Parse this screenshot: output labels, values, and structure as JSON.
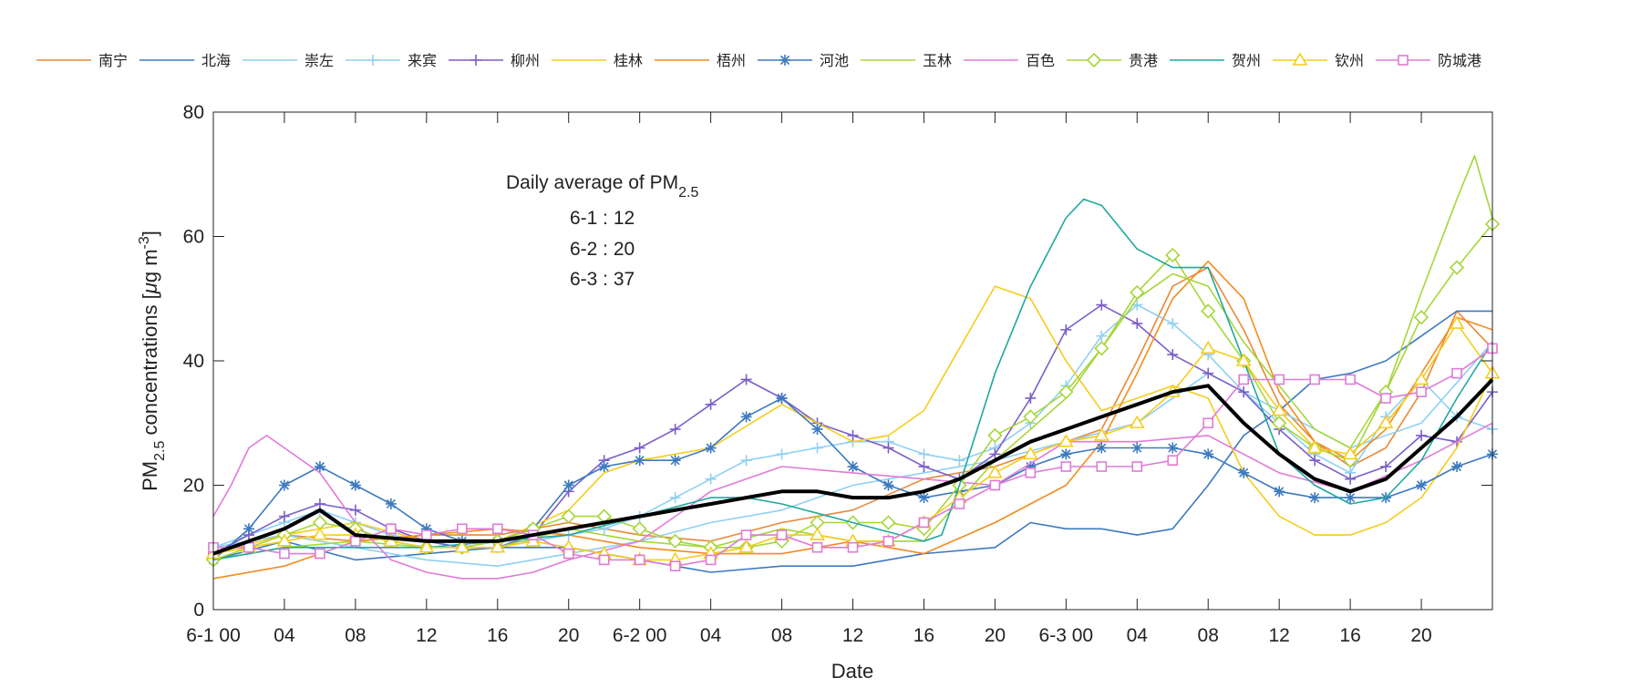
{
  "chart_data": {
    "type": "line",
    "title": "",
    "xlabel": "Date",
    "ylabel": {
      "main": "PM",
      "sub": "2.5",
      "rest": " concentrations [",
      "unit_mu": "μ",
      "unit_g": "g m",
      "unit_sup": "-3",
      "close": "]"
    },
    "ylim": [
      0,
      80
    ],
    "xlim": [
      0,
      72
    ],
    "yticks": [
      0,
      20,
      40,
      60,
      80
    ],
    "xticks": [
      {
        "at": 0,
        "label": "6-1 00"
      },
      {
        "at": 4,
        "label": "04"
      },
      {
        "at": 8,
        "label": "08"
      },
      {
        "at": 12,
        "label": "12"
      },
      {
        "at": 16,
        "label": "16"
      },
      {
        "at": 20,
        "label": "20"
      },
      {
        "at": 24,
        "label": "6-2 00"
      },
      {
        "at": 28,
        "label": "04"
      },
      {
        "at": 32,
        "label": "08"
      },
      {
        "at": 36,
        "label": "12"
      },
      {
        "at": 40,
        "label": "16"
      },
      {
        "at": 44,
        "label": "20"
      },
      {
        "at": 48,
        "label": "6-3 00"
      },
      {
        "at": 52,
        "label": "04"
      },
      {
        "at": 56,
        "label": "08"
      },
      {
        "at": 60,
        "label": "12"
      },
      {
        "at": 64,
        "label": "16"
      },
      {
        "at": 68,
        "label": "20"
      }
    ],
    "annotation": {
      "title_main": "Daily average of PM",
      "title_sub": "2.5",
      "lines": [
        "6-1 : 12",
        "6-2 : 20",
        "6-3 : 37"
      ]
    },
    "series": [
      {
        "name": "南宁",
        "color": "#e8883a",
        "marker": "none",
        "x": [
          0,
          4,
          8,
          12,
          16,
          20,
          24,
          28,
          32,
          36,
          40,
          44,
          48,
          50,
          52,
          54,
          56,
          58,
          60,
          62,
          64,
          66,
          68,
          70,
          72
        ],
        "values": [
          10,
          12,
          11,
          12,
          12,
          14,
          12,
          11,
          14,
          16,
          21,
          23,
          27,
          29,
          40,
          52,
          55,
          45,
          33,
          27,
          23,
          26,
          35,
          48,
          42
        ]
      },
      {
        "name": "北海",
        "color": "#3d7abf",
        "marker": "none",
        "x": [
          0,
          4,
          8,
          12,
          16,
          20,
          24,
          28,
          32,
          36,
          40,
          44,
          46,
          48,
          50,
          52,
          54,
          56,
          58,
          60,
          62,
          64,
          66,
          68,
          70,
          72
        ],
        "values": [
          8,
          11,
          8,
          9,
          10,
          10,
          8,
          6,
          7,
          7,
          9,
          10,
          14,
          13,
          13,
          12,
          13,
          20,
          28,
          32,
          37,
          38,
          40,
          44,
          48,
          48
        ]
      },
      {
        "name": "崇左",
        "color": "#8fd0f2",
        "marker": "none",
        "x": [
          0,
          4,
          8,
          12,
          16,
          20,
          24,
          28,
          32,
          36,
          40,
          44,
          48,
          52,
          56,
          60,
          64,
          68,
          72
        ],
        "values": [
          10,
          12,
          10,
          8,
          7,
          9,
          11,
          14,
          16,
          20,
          22,
          24,
          27,
          30,
          38,
          32,
          26,
          30,
          43
        ]
      },
      {
        "name": "来宾",
        "color": "#8fd0f2",
        "marker": "plus",
        "x": [
          0,
          2,
          4,
          6,
          8,
          10,
          12,
          14,
          16,
          18,
          20,
          22,
          24,
          26,
          28,
          30,
          32,
          34,
          36,
          38,
          40,
          42,
          44,
          46,
          48,
          50,
          52,
          54,
          56,
          58,
          60,
          62,
          64,
          66,
          68,
          70,
          72
        ],
        "values": [
          10,
          12,
          14,
          16,
          14,
          12,
          11,
          10,
          11,
          11,
          12,
          13,
          15,
          18,
          21,
          24,
          25,
          26,
          27,
          27,
          25,
          24,
          26,
          30,
          36,
          44,
          49,
          46,
          41,
          35,
          30,
          25,
          22,
          31,
          37,
          31,
          29
        ]
      },
      {
        "name": "柳州",
        "color": "#7b5ec9",
        "marker": "plus",
        "x": [
          0,
          2,
          4,
          6,
          8,
          10,
          12,
          14,
          16,
          18,
          20,
          22,
          24,
          26,
          28,
          30,
          32,
          34,
          36,
          38,
          40,
          42,
          44,
          46,
          48,
          50,
          52,
          54,
          56,
          58,
          60,
          62,
          64,
          66,
          68,
          70,
          72
        ],
        "values": [
          9,
          12,
          15,
          17,
          16,
          13,
          11,
          10,
          10,
          12,
          19,
          24,
          26,
          29,
          33,
          37,
          34,
          30,
          28,
          26,
          23,
          21,
          25,
          34,
          45,
          49,
          46,
          41,
          38,
          35,
          29,
          24,
          21,
          23,
          28,
          27,
          35
        ]
      },
      {
        "name": "桂林",
        "color": "#f5cc1e",
        "marker": "none",
        "x": [
          0,
          4,
          8,
          12,
          16,
          20,
          22,
          24,
          28,
          32,
          36,
          38,
          40,
          42,
          44,
          46,
          48,
          50,
          52,
          54,
          56,
          58,
          60,
          62,
          64,
          66,
          68,
          70,
          72
        ],
        "values": [
          9,
          12,
          14,
          11,
          11,
          16,
          22,
          24,
          26,
          33,
          27,
          28,
          32,
          42,
          52,
          50,
          40,
          32,
          34,
          36,
          34,
          22,
          15,
          12,
          12,
          14,
          18,
          26,
          38
        ]
      },
      {
        "name": "梧州",
        "color": "#f58a1e",
        "marker": "none",
        "x": [
          0,
          4,
          8,
          12,
          16,
          20,
          24,
          28,
          32,
          36,
          40,
          44,
          48,
          50,
          52,
          54,
          56,
          58,
          60,
          62,
          64,
          66,
          68,
          70,
          72
        ],
        "values": [
          5,
          7,
          11,
          12,
          13,
          12,
          10,
          9,
          9,
          11,
          9,
          14,
          20,
          27,
          38,
          50,
          56,
          50,
          35,
          27,
          24,
          29,
          38,
          47,
          45
        ]
      },
      {
        "name": "河池",
        "color": "#3d7abf",
        "marker": "star",
        "x": [
          0,
          2,
          4,
          6,
          8,
          10,
          12,
          14,
          16,
          18,
          20,
          22,
          24,
          26,
          28,
          30,
          32,
          34,
          36,
          38,
          40,
          42,
          44,
          46,
          48,
          50,
          52,
          54,
          56,
          58,
          60,
          62,
          64,
          66,
          68,
          70,
          72
        ],
        "values": [
          8,
          13,
          20,
          23,
          20,
          17,
          13,
          11,
          11,
          13,
          20,
          23,
          24,
          24,
          26,
          31,
          34,
          29,
          23,
          20,
          18,
          19,
          20,
          23,
          25,
          26,
          26,
          26,
          25,
          22,
          19,
          18,
          18,
          18,
          20,
          23,
          25
        ]
      },
      {
        "name": "玉林",
        "color": "#a6d63a",
        "marker": "none",
        "x": [
          0,
          4,
          8,
          12,
          16,
          20,
          24,
          28,
          32,
          36,
          40,
          44,
          48,
          50,
          52,
          54,
          56,
          58,
          60,
          62,
          64,
          66,
          68,
          70,
          71,
          72
        ],
        "values": [
          8,
          10,
          11,
          10,
          10,
          13,
          11,
          10,
          13,
          11,
          11,
          24,
          34,
          42,
          50,
          54,
          52,
          43,
          36,
          29,
          26,
          35,
          51,
          66,
          73,
          63
        ]
      },
      {
        "name": "百色",
        "color": "#e07ad8",
        "marker": "none",
        "x": [
          0,
          1,
          2,
          3,
          4,
          6,
          8,
          10,
          12,
          14,
          16,
          18,
          20,
          24,
          28,
          32,
          36,
          40,
          44,
          48,
          52,
          56,
          60,
          64,
          68,
          72
        ],
        "values": [
          15,
          20,
          26,
          28,
          26,
          22,
          14,
          8,
          6,
          5,
          5,
          6,
          8,
          11,
          19,
          23,
          22,
          21,
          20,
          27,
          27,
          28,
          22,
          19,
          24,
          30
        ]
      },
      {
        "name": "贵港",
        "color": "#a6d63a",
        "marker": "diamond",
        "x": [
          0,
          2,
          4,
          6,
          8,
          10,
          12,
          14,
          16,
          18,
          20,
          22,
          24,
          26,
          28,
          30,
          32,
          34,
          36,
          38,
          40,
          42,
          44,
          46,
          48,
          50,
          52,
          54,
          56,
          58,
          60,
          62,
          64,
          66,
          68,
          70,
          72
        ],
        "values": [
          8,
          10,
          12,
          14,
          13,
          11,
          10,
          10,
          11,
          13,
          15,
          15,
          13,
          11,
          10,
          10,
          11,
          14,
          14,
          14,
          13,
          20,
          28,
          31,
          35,
          42,
          51,
          57,
          48,
          40,
          30,
          26,
          24,
          35,
          47,
          55,
          62
        ]
      },
      {
        "name": "贺州",
        "color": "#1fa89e",
        "marker": "none",
        "x": [
          0,
          4,
          8,
          12,
          16,
          20,
          24,
          28,
          30,
          32,
          36,
          40,
          41,
          42,
          44,
          46,
          48,
          49,
          50,
          52,
          54,
          56,
          58,
          60,
          62,
          64,
          66,
          68,
          70,
          72
        ],
        "values": [
          8,
          10,
          10,
          10,
          11,
          12,
          15,
          18,
          18,
          17,
          14,
          11,
          12,
          20,
          38,
          52,
          63,
          66,
          65,
          58,
          55,
          55,
          40,
          25,
          20,
          17,
          18,
          24,
          34,
          43
        ]
      },
      {
        "name": "钦州",
        "color": "#f5cc1e",
        "marker": "triangle",
        "x": [
          0,
          2,
          4,
          6,
          8,
          10,
          12,
          14,
          16,
          18,
          20,
          22,
          24,
          26,
          28,
          30,
          32,
          34,
          36,
          38,
          40,
          42,
          44,
          46,
          48,
          50,
          52,
          54,
          56,
          58,
          60,
          62,
          64,
          66,
          68,
          70,
          72
        ],
        "values": [
          9,
          10,
          11,
          12,
          12,
          11,
          10,
          10,
          10,
          11,
          10,
          9,
          8,
          8,
          9,
          10,
          12,
          12,
          11,
          11,
          14,
          18,
          22,
          25,
          27,
          28,
          30,
          35,
          42,
          40,
          32,
          26,
          25,
          30,
          37,
          46,
          38
        ]
      },
      {
        "name": "防城港",
        "color": "#e07ad8",
        "marker": "square",
        "x": [
          0,
          2,
          4,
          6,
          8,
          10,
          12,
          14,
          16,
          18,
          20,
          22,
          24,
          26,
          28,
          30,
          32,
          34,
          36,
          38,
          40,
          42,
          44,
          46,
          48,
          50,
          52,
          54,
          56,
          58,
          60,
          62,
          64,
          66,
          68,
          70,
          72
        ],
        "values": [
          10,
          10,
          9,
          9,
          11,
          13,
          12,
          13,
          13,
          12,
          9,
          8,
          8,
          7,
          8,
          12,
          12,
          10,
          10,
          11,
          14,
          17,
          20,
          22,
          23,
          23,
          23,
          24,
          30,
          37,
          37,
          37,
          37,
          34,
          35,
          38,
          42
        ]
      },
      {
        "name": "average",
        "color": "#000000",
        "marker": "none",
        "legend": false,
        "width": 4,
        "x": [
          0,
          4,
          6,
          8,
          12,
          16,
          20,
          24,
          28,
          30,
          32,
          34,
          36,
          38,
          40,
          42,
          44,
          46,
          48,
          50,
          52,
          54,
          56,
          58,
          60,
          62,
          64,
          66,
          68,
          70,
          72
        ],
        "values": [
          9,
          13,
          16,
          12,
          11,
          11,
          13,
          15,
          17,
          18,
          19,
          19,
          18,
          18,
          19,
          21,
          24,
          27,
          29,
          31,
          33,
          35,
          36,
          30,
          25,
          21,
          19,
          21,
          26,
          31,
          37
        ]
      }
    ]
  }
}
